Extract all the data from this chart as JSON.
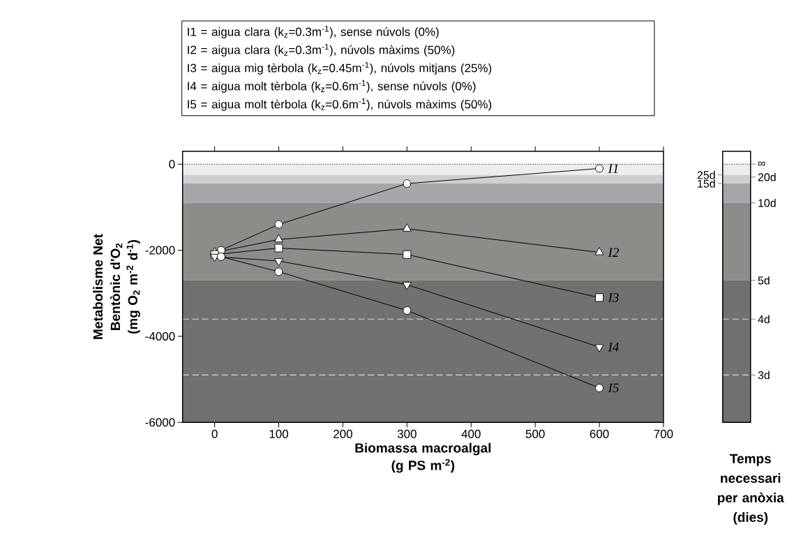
{
  "chart_data": {
    "type": "line",
    "xlabel": "Biomassa macroalgal (g PS m$^{-2}$)",
    "ylabel": "Metabolisme Net Bentònic d'O$_{2}$ (mg O$_{2}$ m$^{-2}$ d$^{-1}$)",
    "y2label": "Temps necessari per anòxia (dies)",
    "annotations": [
      "I1 = aigua clara (k$_{z}$=0.3m$^{-1}$), sense núvols (0%)",
      "I2 = aigua clara (k$_{z}$=0.3m$^{-1}$), núvols màxims (50%)",
      "I3 = aigua mig tèrbola (k$_{z}$=0.45m$^{-1}$), núvols mitjans (25%)",
      "I4 = aigua molt tèrbola (k$_{z}$=0.6m$^{-1}$), sense núvols (0%)",
      "I5 = aigua molt tèrbola (k$_{z}$=0.6m$^{-1}$), núvols màxims (50%)"
    ],
    "xlim": [
      -50,
      700
    ],
    "ylim": [
      -6000,
      300
    ],
    "xticks": [
      0,
      100,
      200,
      300,
      400,
      500,
      600,
      700
    ],
    "yticks": [
      -6000,
      -4000,
      -2000,
      0
    ],
    "bands": [
      {
        "axis": "y",
        "from": 0,
        "to": -250,
        "color": "#efecef"
      },
      {
        "axis": "y",
        "from": -250,
        "to": -450,
        "color": "#cfcfd1"
      },
      {
        "axis": "y",
        "from": -450,
        "to": -900,
        "color": "#a6a5a9"
      },
      {
        "axis": "y",
        "from": -900,
        "to": -2700,
        "color": "#8b8d89"
      },
      {
        "axis": "y",
        "from": -2700,
        "to": -6000,
        "color": "#727073"
      }
    ],
    "ref_lines": [
      {
        "axis": "y",
        "value": 0,
        "color": "#000000",
        "line_style": "dotted"
      },
      {
        "axis": "y",
        "value": -3600,
        "color": "#d9d9d9",
        "line_style": "dashed"
      },
      {
        "axis": "y",
        "value": -4900,
        "color": "#d9d9d9",
        "line_style": "dashed"
      },
      {
        "axis": "y",
        "value": 0,
        "label": "∞"
      },
      {
        "axis": "y",
        "value": -250,
        "label": "25d"
      },
      {
        "axis": "y",
        "value": -300,
        "label": "20d"
      },
      {
        "axis": "y",
        "value": -450,
        "label": "15d"
      },
      {
        "axis": "y",
        "value": -900,
        "label": "10d"
      },
      {
        "axis": "y",
        "value": -2700,
        "label": "5d"
      },
      {
        "axis": "y",
        "value": -3600,
        "label": "4d"
      },
      {
        "axis": "y",
        "value": -4900,
        "label": "3d"
      }
    ],
    "line_style": "solid",
    "series": [
      {
        "name": "I1",
        "color": "#000000",
        "marker": "circle",
        "x": [
          10,
          100,
          300,
          600
        ],
        "values": [
          -2000,
          -1400,
          -450,
          -100
        ]
      },
      {
        "name": "I2",
        "color": "#000000",
        "marker": "triangle",
        "x": [
          0,
          100,
          300,
          600
        ],
        "values": [
          -2050,
          -1750,
          -1500,
          -2050
        ]
      },
      {
        "name": "I3",
        "color": "#000000",
        "marker": "square",
        "x": [
          0,
          100,
          300,
          600
        ],
        "values": [
          -2100,
          -1950,
          -2100,
          -3100
        ]
      },
      {
        "name": "I4",
        "color": "#000000",
        "marker": "triangle-down",
        "x": [
          0,
          100,
          300,
          600
        ],
        "values": [
          -2150,
          -2250,
          -2800,
          -4250
        ]
      },
      {
        "name": "I5",
        "color": "#000000",
        "marker": "circle",
        "x": [
          10,
          100,
          300,
          600
        ],
        "values": [
          -2150,
          -2500,
          -3400,
          -5200
        ]
      }
    ]
  }
}
